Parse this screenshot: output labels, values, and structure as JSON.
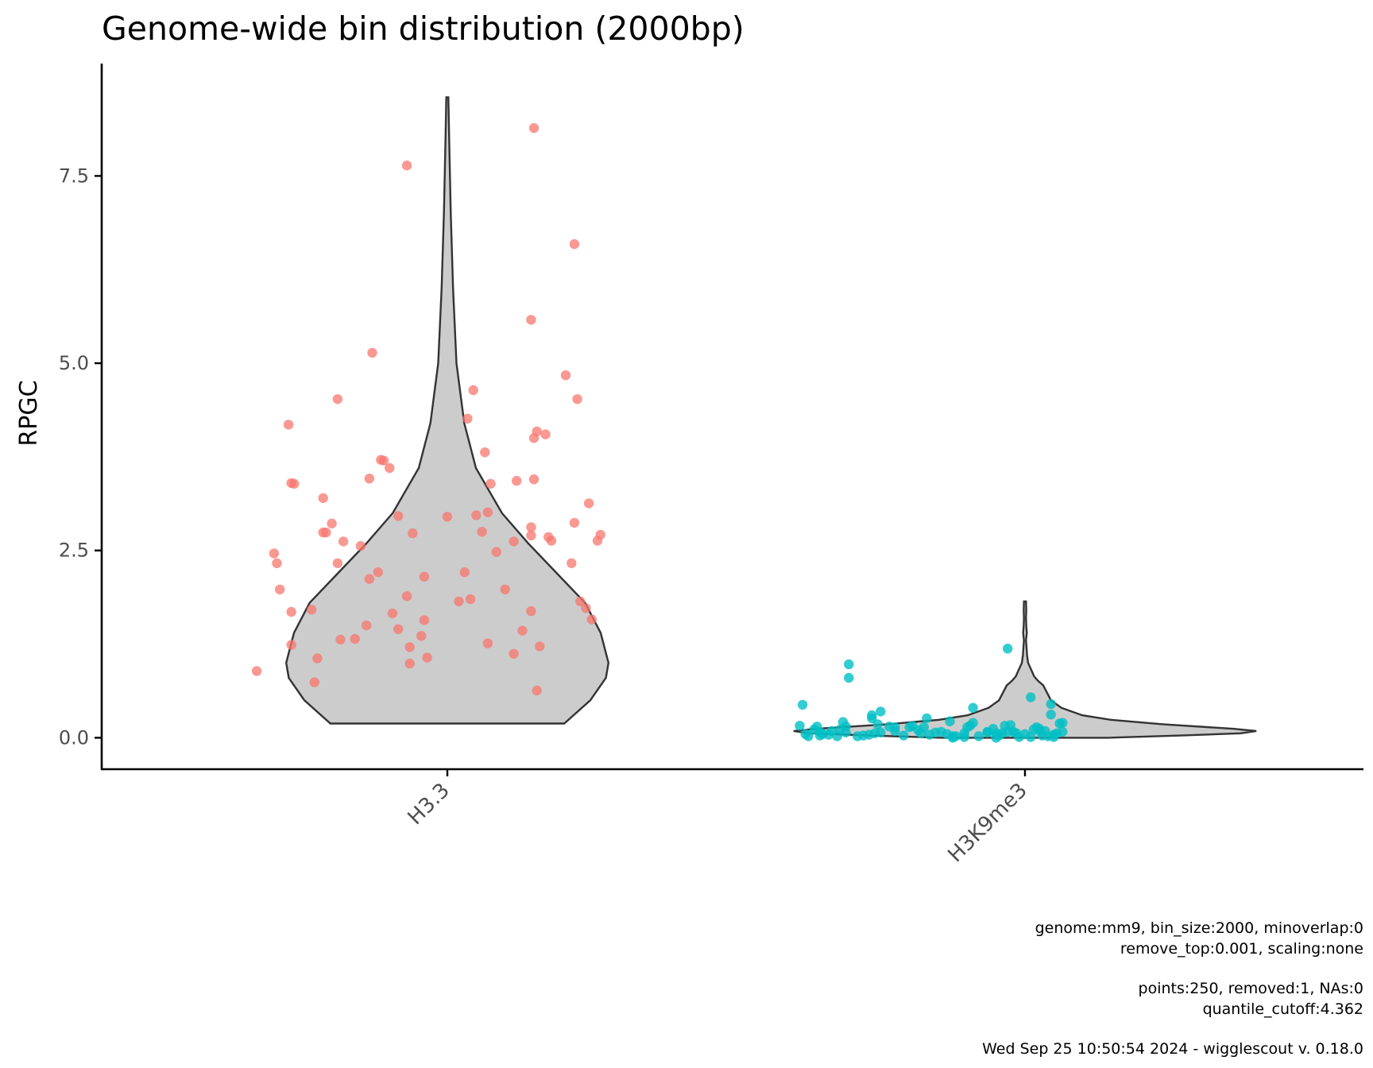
{
  "chart_data": {
    "type": "violin",
    "title": "Genome-wide bin distribution (2000bp)",
    "xlabel": "",
    "ylabel": "RPGC",
    "ylim": [
      -0.42,
      9.0
    ],
    "yticks": [
      0.0,
      2.5,
      5.0,
      7.5
    ],
    "ytick_labels": [
      "0.0",
      "2.5",
      "5.0",
      "7.5"
    ],
    "categories": [
      "H3.3",
      "H3K9me3"
    ],
    "series": [
      {
        "name": "H3.3",
        "color": "#f8766d",
        "violin": {
          "min": 0.19,
          "max": 8.55,
          "profile": [
            [
              0.19,
              0.45
            ],
            [
              0.5,
              0.55
            ],
            [
              0.8,
              0.61
            ],
            [
              1.0,
              0.62
            ],
            [
              1.4,
              0.59
            ],
            [
              1.8,
              0.53
            ],
            [
              2.2,
              0.42
            ],
            [
              2.6,
              0.31
            ],
            [
              3.0,
              0.21
            ],
            [
              3.6,
              0.11
            ],
            [
              4.2,
              0.065
            ],
            [
              5.0,
              0.035
            ],
            [
              6.0,
              0.022
            ],
            [
              7.0,
              0.013
            ],
            [
              8.0,
              0.007
            ],
            [
              8.55,
              0.004
            ]
          ]
        },
        "points": [
          [
            -0.66,
            0.89
          ],
          [
            -0.6,
            2.46
          ],
          [
            -0.59,
            2.33
          ],
          [
            -0.58,
            1.98
          ],
          [
            -0.55,
            4.18
          ],
          [
            -0.54,
            3.4
          ],
          [
            -0.54,
            1.68
          ],
          [
            -0.54,
            1.24
          ],
          [
            -0.53,
            3.39
          ],
          [
            -0.47,
            1.71
          ],
          [
            -0.46,
            0.74
          ],
          [
            -0.45,
            1.06
          ],
          [
            -0.43,
            3.2
          ],
          [
            -0.43,
            2.74
          ],
          [
            -0.42,
            2.74
          ],
          [
            -0.4,
            2.86
          ],
          [
            -0.38,
            4.52
          ],
          [
            -0.38,
            2.33
          ],
          [
            -0.37,
            1.31
          ],
          [
            -0.36,
            2.62
          ],
          [
            -0.32,
            1.32
          ],
          [
            -0.3,
            2.56
          ],
          [
            -0.28,
            1.5
          ],
          [
            -0.27,
            3.46
          ],
          [
            -0.27,
            2.12
          ],
          [
            -0.26,
            5.14
          ],
          [
            -0.24,
            2.21
          ],
          [
            -0.23,
            3.71
          ],
          [
            -0.22,
            3.7
          ],
          [
            -0.2,
            3.6
          ],
          [
            -0.19,
            1.66
          ],
          [
            -0.17,
            2.96
          ],
          [
            -0.17,
            1.45
          ],
          [
            -0.14,
            7.64
          ],
          [
            -0.14,
            1.89
          ],
          [
            -0.13,
            1.21
          ],
          [
            -0.13,
            0.99
          ],
          [
            -0.12,
            2.73
          ],
          [
            -0.09,
            1.36
          ],
          [
            -0.08,
            1.57
          ],
          [
            -0.08,
            2.15
          ],
          [
            -0.07,
            1.07
          ],
          [
            0.0,
            2.95
          ],
          [
            0.04,
            1.82
          ],
          [
            0.06,
            2.21
          ],
          [
            0.07,
            4.26
          ],
          [
            0.08,
            1.85
          ],
          [
            0.09,
            4.64
          ],
          [
            0.1,
            2.97
          ],
          [
            0.12,
            2.75
          ],
          [
            0.13,
            3.81
          ],
          [
            0.14,
            3.01
          ],
          [
            0.14,
            1.26
          ],
          [
            0.15,
            3.39
          ],
          [
            0.17,
            2.48
          ],
          [
            0.2,
            1.98
          ],
          [
            0.23,
            1.12
          ],
          [
            0.23,
            2.62
          ],
          [
            0.24,
            3.43
          ],
          [
            0.26,
            1.43
          ],
          [
            0.29,
            2.81
          ],
          [
            0.29,
            1.69
          ],
          [
            0.29,
            5.58
          ],
          [
            0.29,
            2.7
          ],
          [
            0.3,
            8.14
          ],
          [
            0.3,
            4.0
          ],
          [
            0.3,
            3.45
          ],
          [
            0.31,
            0.63
          ],
          [
            0.31,
            4.09
          ],
          [
            0.32,
            1.22
          ],
          [
            0.34,
            4.05
          ],
          [
            0.35,
            2.68
          ],
          [
            0.36,
            2.63
          ],
          [
            0.41,
            4.84
          ],
          [
            0.43,
            2.33
          ],
          [
            0.44,
            2.87
          ],
          [
            0.44,
            6.59
          ],
          [
            0.45,
            4.52
          ],
          [
            0.46,
            1.82
          ],
          [
            0.48,
            1.73
          ],
          [
            0.49,
            3.13
          ],
          [
            0.5,
            1.58
          ],
          [
            0.52,
            2.63
          ],
          [
            0.53,
            2.71
          ]
        ]
      },
      {
        "name": "H3K9me3",
        "color": "#00bfc4",
        "violin": {
          "min": 0.0,
          "max": 1.82,
          "profile": [
            [
              0.0,
              0.32
            ],
            [
              0.03,
              0.6
            ],
            [
              0.06,
              0.83
            ],
            [
              0.09,
              0.89
            ],
            [
              0.12,
              0.8
            ],
            [
              0.18,
              0.53
            ],
            [
              0.24,
              0.33
            ],
            [
              0.3,
              0.22
            ],
            [
              0.4,
              0.14
            ],
            [
              0.5,
              0.1
            ],
            [
              0.6,
              0.085
            ],
            [
              0.7,
              0.07
            ],
            [
              0.76,
              0.05
            ],
            [
              0.82,
              0.035
            ],
            [
              0.9,
              0.025
            ],
            [
              1.0,
              0.012
            ],
            [
              1.1,
              0.008
            ],
            [
              1.2,
              0.006
            ],
            [
              1.3,
              0.004
            ],
            [
              1.4,
              0.007
            ],
            [
              1.5,
              0.005
            ],
            [
              1.6,
              0.004
            ],
            [
              1.7,
              0.005
            ],
            [
              1.82,
              0.004
            ]
          ]
        },
        "points": [
          [
            -0.78,
            0.16
          ],
          [
            -0.77,
            0.44
          ],
          [
            -0.76,
            0.05
          ],
          [
            -0.75,
            0.02
          ],
          [
            -0.73,
            0.11
          ],
          [
            -0.72,
            0.15
          ],
          [
            -0.71,
            0.03
          ],
          [
            -0.71,
            0.08
          ],
          [
            -0.7,
            0.05
          ],
          [
            -0.68,
            0.04
          ],
          [
            -0.67,
            0.09
          ],
          [
            -0.65,
            0.02
          ],
          [
            -0.64,
            0.11
          ],
          [
            -0.63,
            0.21
          ],
          [
            -0.62,
            0.15
          ],
          [
            -0.62,
            0.07
          ],
          [
            -0.61,
            0.8
          ],
          [
            -0.61,
            0.98
          ],
          [
            -0.58,
            0.02
          ],
          [
            -0.56,
            0.03
          ],
          [
            -0.54,
            0.04
          ],
          [
            -0.53,
            0.3
          ],
          [
            -0.53,
            0.26
          ],
          [
            -0.52,
            0.06
          ],
          [
            -0.51,
            0.18
          ],
          [
            -0.5,
            0.07
          ],
          [
            -0.5,
            0.35
          ],
          [
            -0.47,
            0.15
          ],
          [
            -0.45,
            0.14
          ],
          [
            -0.45,
            0.09
          ],
          [
            -0.42,
            0.03
          ],
          [
            -0.4,
            0.14
          ],
          [
            -0.39,
            0.16
          ],
          [
            -0.37,
            0.1
          ],
          [
            -0.36,
            0.06
          ],
          [
            -0.35,
            0.14
          ],
          [
            -0.34,
            0.26
          ],
          [
            -0.33,
            0.04
          ],
          [
            -0.31,
            0.07
          ],
          [
            -0.29,
            0.08
          ],
          [
            -0.27,
            0.05
          ],
          [
            -0.26,
            0.22
          ],
          [
            -0.25,
            0.02
          ],
          [
            -0.24,
            0.02
          ],
          [
            -0.21,
            0.06
          ],
          [
            -0.21,
            0.01
          ],
          [
            -0.2,
            0.14
          ],
          [
            -0.19,
            0.16
          ],
          [
            -0.18,
            0.2
          ],
          [
            -0.18,
            0.4
          ],
          [
            -0.16,
            0.02
          ],
          [
            -0.13,
            0.07
          ],
          [
            -0.13,
            0.08
          ],
          [
            -0.11,
            0.12
          ],
          [
            -0.1,
            0.06
          ],
          [
            -0.09,
            0.03
          ],
          [
            -0.08,
            0.06
          ],
          [
            -0.07,
            0.16
          ],
          [
            -0.06,
            0.08
          ],
          [
            -0.06,
            1.19
          ],
          [
            -0.05,
            0.17
          ],
          [
            -0.04,
            0.08
          ],
          [
            -0.03,
            0.06
          ],
          [
            -0.02,
            0.01
          ],
          [
            0.0,
            0.05
          ],
          [
            0.02,
            0.54
          ],
          [
            0.03,
            0.11
          ],
          [
            0.04,
            0.14
          ],
          [
            0.05,
            0.09
          ],
          [
            0.05,
            0.12
          ],
          [
            0.06,
            0.03
          ],
          [
            0.07,
            0.09
          ],
          [
            0.08,
            0.02
          ],
          [
            0.09,
            0.45
          ],
          [
            0.09,
            0.31
          ],
          [
            0.1,
            0.04
          ],
          [
            0.11,
            0.06
          ],
          [
            0.12,
            0.19
          ],
          [
            0.13,
            0.2
          ],
          [
            0.13,
            0.08
          ],
          [
            -0.25,
            0.0
          ],
          [
            -0.1,
            0.0
          ],
          [
            0.02,
            0.01
          ],
          [
            0.1,
            0.01
          ]
        ]
      }
    ],
    "legend": "none",
    "grid": false
  },
  "caption": {
    "lines": [
      "genome:mm9, bin_size:2000, minoverlap:0",
      "remove_top:0.001, scaling:none",
      "",
      "points:250, removed:1, NAs:0",
      "quantile_cutoff:4.362",
      "",
      "Wed Sep 25 10:50:54 2024 - wigglescout v. 0.18.0"
    ]
  }
}
